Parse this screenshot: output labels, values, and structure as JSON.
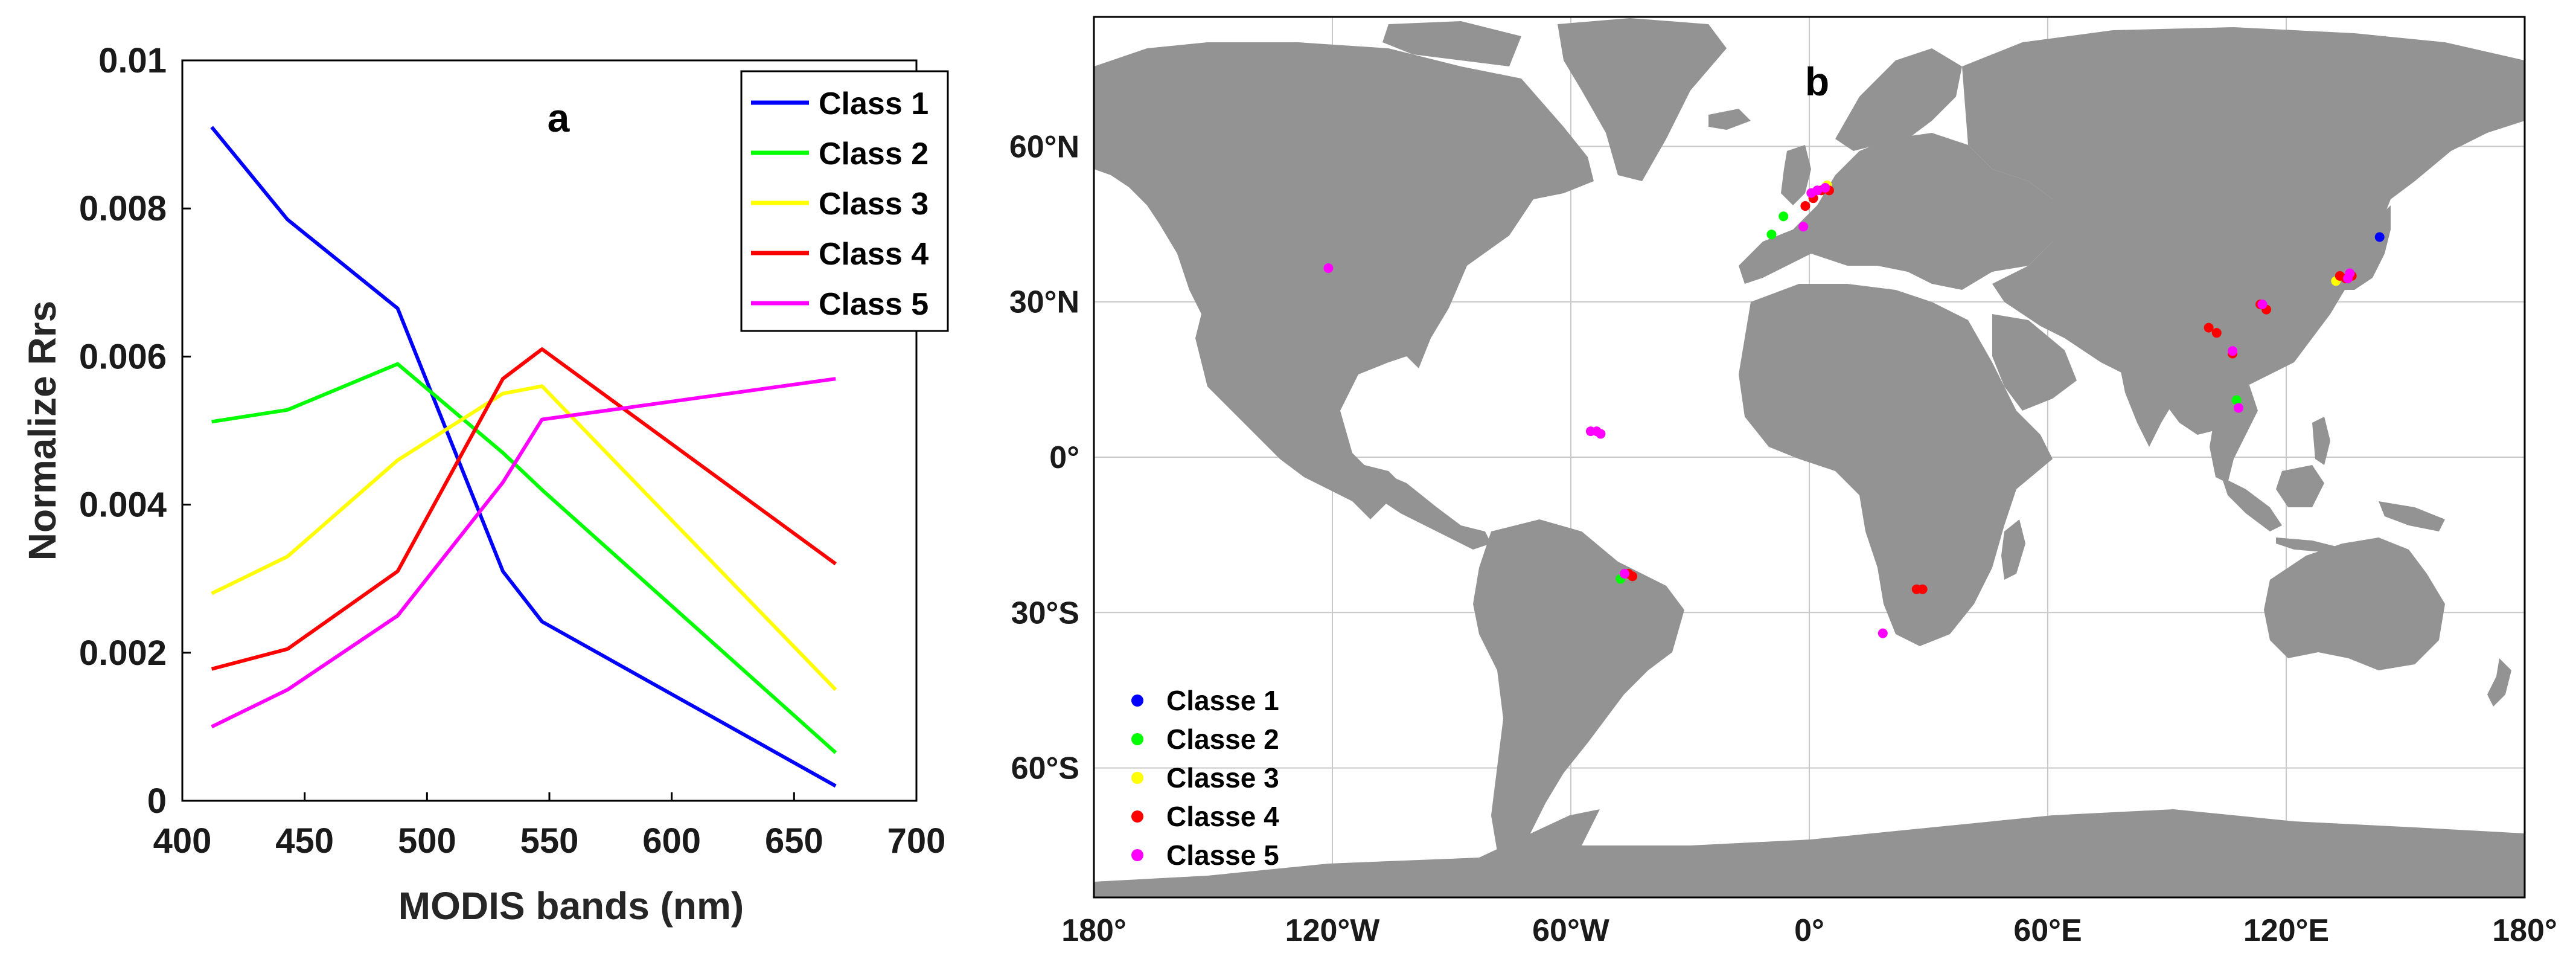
{
  "chart_data": [
    {
      "type": "line",
      "panel_label": "a",
      "xlabel": "MODIS bands (nm)",
      "ylabel": "Normalize Rrs",
      "xlim": [
        400,
        700
      ],
      "ylim": [
        0,
        0.01
      ],
      "x_ticks": [
        "400",
        "450",
        "500",
        "550",
        "600",
        "650",
        "700"
      ],
      "y_ticks": [
        "0",
        "0.002",
        "0.004",
        "0.006",
        "0.008",
        "0.01"
      ],
      "x": [
        412,
        443,
        488,
        531,
        547,
        667
      ],
      "legend_position": "top-right",
      "grid": false,
      "series": [
        {
          "name": "Class 1",
          "color": "#0000ff",
          "values": [
            0.0091,
            0.00785,
            0.00665,
            0.0031,
            0.00242,
            0.0002
          ]
        },
        {
          "name": "Class 2",
          "color": "#00ff00",
          "values": [
            0.00512,
            0.00528,
            0.0059,
            0.0047,
            0.0042,
            0.00065
          ]
        },
        {
          "name": "Class 3",
          "color": "#ffff00",
          "values": [
            0.0028,
            0.0033,
            0.0046,
            0.0055,
            0.0056,
            0.0015
          ]
        },
        {
          "name": "Class 4",
          "color": "#ff0000",
          "values": [
            0.00178,
            0.00205,
            0.0031,
            0.0057,
            0.0061,
            0.0032
          ]
        },
        {
          "name": "Class 5",
          "color": "#ff00ff",
          "values": [
            0.001,
            0.0015,
            0.0025,
            0.0043,
            0.00515,
            0.0057
          ]
        }
      ]
    },
    {
      "type": "scatter",
      "panel_label": "b",
      "projection": "equirectangular",
      "xlim": [
        -180,
        180
      ],
      "ylim": [
        -85,
        85
      ],
      "x_ticks": [
        "180°",
        "120°W",
        "60°W",
        "0°",
        "60°E",
        "120°E",
        "180°"
      ],
      "y_ticks": [
        "60°N",
        "30°N",
        "0°",
        "30°S",
        "60°S"
      ],
      "grid": true,
      "legend_position": "bottom-left",
      "colors": {
        "land": "#939393",
        "ocean": "#ffffff",
        "grid": "#c8c8c8"
      },
      "series": [
        {
          "name": "Classe 1",
          "color": "#0000ff",
          "points": [
            [
              143.5,
              42.5
            ]
          ]
        },
        {
          "name": "Classe 2",
          "color": "#00ff00",
          "points": [
            [
              -9.5,
              43.0
            ],
            [
              -6.5,
              46.5
            ],
            [
              -47.5,
              -23.5
            ],
            [
              107.5,
              11.0
            ]
          ]
        },
        {
          "name": "Classe 3",
          "color": "#ffff00",
          "points": [
            [
              4.5,
              52.5
            ],
            [
              132.5,
              34.0
            ]
          ]
        },
        {
          "name": "Classe 4",
          "color": "#ff0000",
          "points": [
            [
              1.0,
              50.0
            ],
            [
              -1.0,
              48.5
            ],
            [
              3.0,
              51.5
            ],
            [
              5.0,
              51.5
            ],
            [
              -45.5,
              -22.5
            ],
            [
              -44.5,
              -23.0
            ],
            [
              27.0,
              -25.5
            ],
            [
              28.5,
              -25.5
            ],
            [
              100.5,
              25.0
            ],
            [
              102.5,
              24.0
            ],
            [
              113.5,
              29.5
            ],
            [
              115.0,
              28.5
            ],
            [
              106.5,
              20.0
            ],
            [
              133.5,
              35.0
            ],
            [
              135.0,
              34.5
            ],
            [
              136.5,
              35.0
            ]
          ]
        },
        {
          "name": "Classe 5",
          "color": "#ff00ff",
          "points": [
            [
              -121.0,
              36.5
            ],
            [
              -55.0,
              5.0
            ],
            [
              -53.5,
              5.0
            ],
            [
              -52.5,
              4.5
            ],
            [
              -46.5,
              -22.5
            ],
            [
              -1.5,
              44.5
            ],
            [
              0.5,
              51.0
            ],
            [
              2.0,
              51.5
            ],
            [
              4.0,
              52.0
            ],
            [
              18.5,
              -34.0
            ],
            [
              108.0,
              9.5
            ],
            [
              106.5,
              20.5
            ],
            [
              114.0,
              29.5
            ],
            [
              135.5,
              34.5
            ],
            [
              136.0,
              35.5
            ]
          ]
        }
      ]
    }
  ]
}
